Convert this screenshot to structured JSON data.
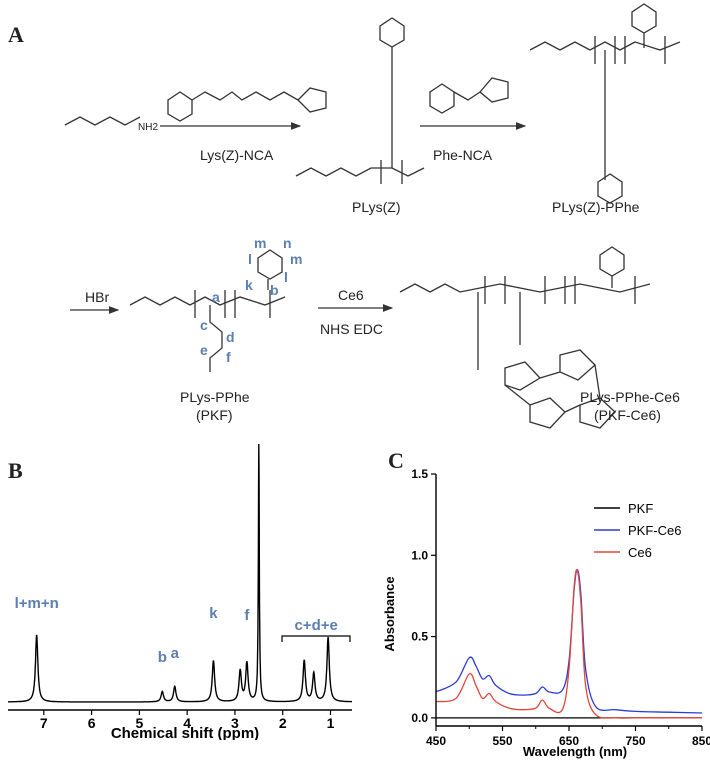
{
  "panels": {
    "a": "A",
    "b": "B",
    "c": "C"
  },
  "scheme": {
    "reagent1": "Lys(Z)-NCA",
    "reagent2": "Phe-NCA",
    "reagent3": "HBr",
    "reagent4a": "Ce6",
    "reagent4b": "NHS EDC",
    "start_label": "NH2",
    "product1": "PLys(Z)",
    "product2": "PLys(Z)-PPhe",
    "product3a": "PLys-PPhe",
    "product3b": "(PKF)",
    "product4a": "PLys-PPhe-Ce6",
    "product4b": "(PKF-Ce6)",
    "proton_labels": [
      "a",
      "b",
      "c",
      "d",
      "e",
      "f",
      "k",
      "l",
      "m",
      "n"
    ]
  },
  "nmr": {
    "xlabel": "Chemical shift (ppm)",
    "xticks": [
      7,
      6,
      5,
      4,
      3,
      2,
      1
    ],
    "annotations": [
      {
        "text": "l+m+n",
        "ppm": 7.15
      },
      {
        "text": "b",
        "ppm": 4.52
      },
      {
        "text": "a",
        "ppm": 4.26
      },
      {
        "text": "k",
        "ppm": 3.45
      },
      {
        "text": "f",
        "ppm": 2.75
      },
      {
        "text": "c+d+e",
        "ppm": 1.3
      }
    ],
    "peaks": [
      {
        "ppm": 7.15,
        "h": 0.26
      },
      {
        "ppm": 4.52,
        "h": 0.04
      },
      {
        "ppm": 4.26,
        "h": 0.06
      },
      {
        "ppm": 3.45,
        "h": 0.16
      },
      {
        "ppm": 2.89,
        "h": 0.12
      },
      {
        "ppm": 2.75,
        "h": 0.15
      },
      {
        "ppm": 2.5,
        "h": 1.0
      },
      {
        "ppm": 1.55,
        "h": 0.16
      },
      {
        "ppm": 1.35,
        "h": 0.11
      },
      {
        "ppm": 1.05,
        "h": 0.25
      }
    ]
  },
  "chart_data": {
    "type": "line",
    "xlabel": "Wavelength (nm)",
    "ylabel": "Absorbance",
    "xlim": [
      450,
      850
    ],
    "ylim": [
      -0.05,
      1.5
    ],
    "xticks": [
      450,
      550,
      650,
      750,
      850
    ],
    "yticks": [
      "0.0",
      "0.5",
      "1.0",
      "1.5"
    ],
    "legend_position": "top-right",
    "series": [
      {
        "name": "PKF",
        "color": "#000000",
        "x": [
          450,
          850
        ],
        "y": [
          0.0,
          0.0
        ]
      },
      {
        "name": "PKF-Ce6",
        "color": "#2b3bd6",
        "x": [
          450,
          480,
          500,
          510,
          520,
          530,
          540,
          560,
          580,
          600,
          610,
          620,
          640,
          650,
          658,
          663,
          668,
          675,
          690,
          720,
          750,
          800,
          850
        ],
        "y": [
          0.16,
          0.22,
          0.37,
          0.32,
          0.24,
          0.26,
          0.2,
          0.15,
          0.14,
          0.15,
          0.19,
          0.16,
          0.17,
          0.35,
          0.8,
          0.91,
          0.75,
          0.3,
          0.07,
          0.05,
          0.04,
          0.035,
          0.03
        ]
      },
      {
        "name": "Ce6",
        "color": "#e0463c",
        "x": [
          450,
          480,
          500,
          510,
          520,
          530,
          540,
          560,
          580,
          600,
          610,
          620,
          640,
          650,
          658,
          663,
          668,
          675,
          690,
          720,
          750,
          800,
          850
        ],
        "y": [
          0.1,
          0.12,
          0.27,
          0.2,
          0.12,
          0.15,
          0.1,
          0.06,
          0.05,
          0.06,
          0.11,
          0.06,
          0.05,
          0.3,
          0.82,
          0.9,
          0.7,
          0.2,
          0.02,
          0.0,
          0.0,
          0.0,
          0.0
        ]
      }
    ]
  }
}
